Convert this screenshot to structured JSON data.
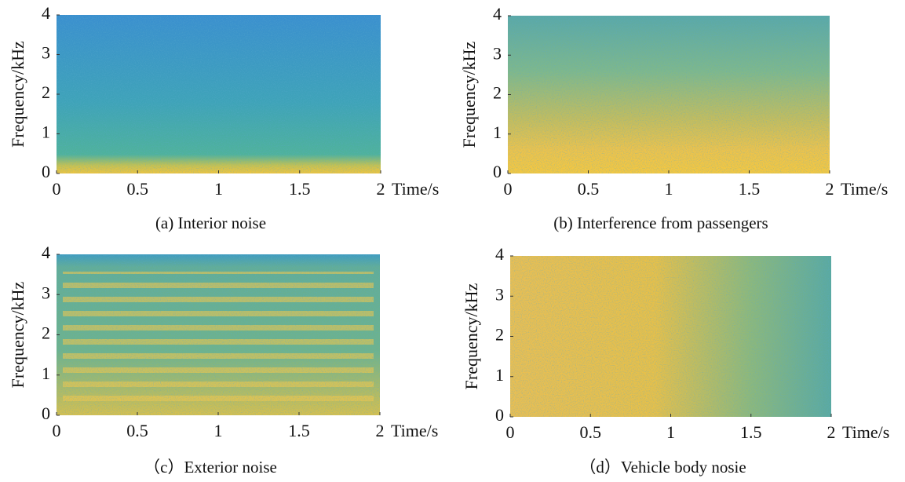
{
  "chart_data": [
    {
      "type": "spectrogram",
      "caption": "(a)  Interior noise",
      "xlabel": "Time/s",
      "ylabel": "Frequency/kHz",
      "xlim": [
        0,
        2
      ],
      "ylim": [
        0,
        4
      ],
      "xticks": [
        0,
        0.5,
        1,
        1.5,
        2
      ],
      "yticks": [
        0,
        1,
        2,
        3,
        4
      ]
    },
    {
      "type": "spectrogram",
      "caption": "(b)   Interference from passengers",
      "xlabel": "Time/s",
      "ylabel": "Frequency/kHz",
      "xlim": [
        0,
        2
      ],
      "ylim": [
        0,
        4
      ],
      "xticks": [
        0,
        0.5,
        1,
        1.5,
        2
      ],
      "yticks": [
        0,
        1,
        2,
        3,
        4
      ]
    },
    {
      "type": "spectrogram",
      "caption": "（c）Exterior noise",
      "xlabel": "Time/s",
      "ylabel": "Frequency/kHz",
      "xlim": [
        0,
        2
      ],
      "ylim": [
        0,
        4
      ],
      "xticks": [
        0,
        0.5,
        1,
        1.5,
        2
      ],
      "yticks": [
        0,
        1,
        2,
        3,
        4
      ]
    },
    {
      "type": "spectrogram",
      "caption": "（d）Vehicle body nosie",
      "xlabel": "Time/s",
      "ylabel": "Frequency/kHz",
      "xlim": [
        0,
        2
      ],
      "ylim": [
        0,
        4
      ],
      "xticks": [
        0,
        0.5,
        1,
        1.5,
        2
      ],
      "yticks": [
        0,
        1,
        2,
        3,
        4
      ]
    }
  ]
}
